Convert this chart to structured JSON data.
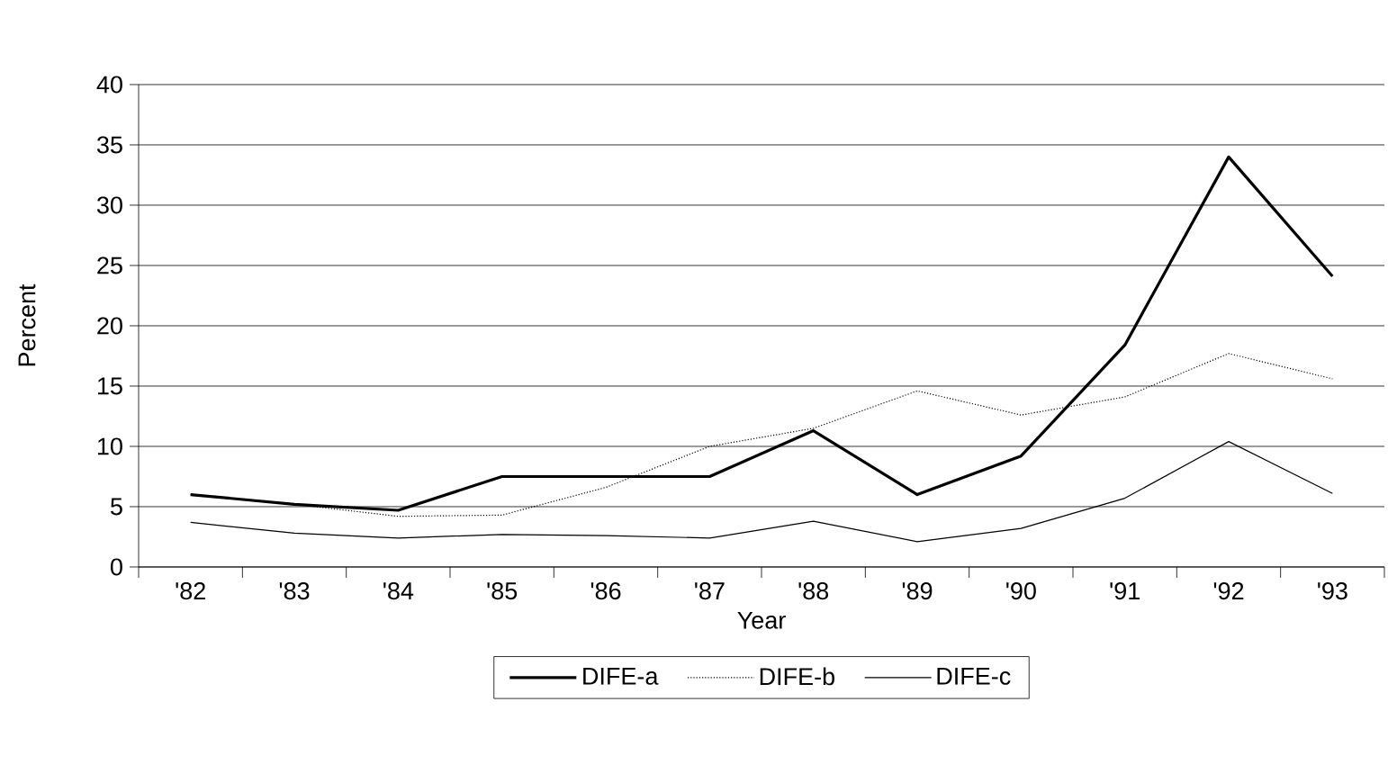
{
  "chart_data": {
    "type": "line",
    "xlabel": "Year",
    "ylabel": "Percent",
    "categories": [
      "'82",
      "'83",
      "'84",
      "'85",
      "'86",
      "'87",
      "'88",
      "'89",
      "'90",
      "'91",
      "'92",
      "'93"
    ],
    "series": [
      {
        "name": "DIFE-a",
        "color": "#000000",
        "line_style": "solid",
        "values": [
          6.0,
          5.2,
          4.7,
          7.5,
          7.5,
          7.5,
          11.3,
          6.0,
          9.2,
          18.4,
          34.0,
          24.1
        ]
      },
      {
        "name": "DIFE-b",
        "color": "#000000",
        "line_style": "dotted",
        "values": [
          6.0,
          5.2,
          4.2,
          4.3,
          6.6,
          10.0,
          11.5,
          14.6,
          12.6,
          14.1,
          17.7,
          15.6
        ]
      },
      {
        "name": "DIFE-c",
        "color": "#000000",
        "line_style": "solid",
        "values": [
          3.7,
          2.8,
          2.4,
          2.7,
          2.6,
          2.4,
          3.8,
          2.1,
          3.2,
          5.7,
          10.4,
          6.1
        ]
      }
    ],
    "ylim": [
      0,
      40
    ],
    "yticks": [
      0,
      5,
      10,
      15,
      20,
      25,
      30,
      35,
      40
    ],
    "grid": "y",
    "legend": "bottom",
    "marker": "none"
  }
}
